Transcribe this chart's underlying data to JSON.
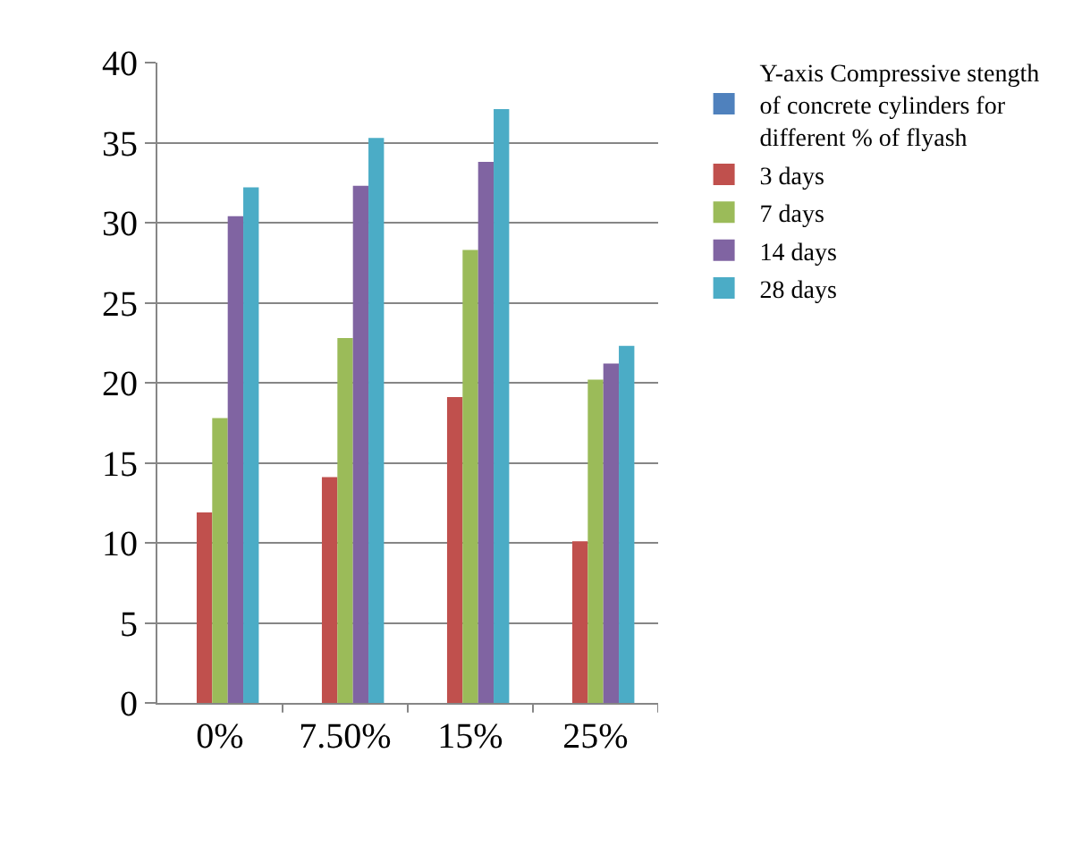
{
  "chart_data": {
    "type": "bar",
    "categories": [
      "0%",
      "7.50%",
      "15%",
      "25%"
    ],
    "series": [
      {
        "name": "Y-axis Compressive stength of concrete cylinders for different % of flyash",
        "color": "#4f81bd",
        "values": [
          null,
          null,
          null,
          null
        ]
      },
      {
        "name": "3 days",
        "color": "#c0504d",
        "values": [
          11.9,
          14.1,
          19.1,
          10.1
        ]
      },
      {
        "name": "7 days",
        "color": "#9bbb59",
        "values": [
          17.8,
          22.8,
          28.3,
          20.2
        ]
      },
      {
        "name": "14 days",
        "color": "#8064a2",
        "values": [
          30.4,
          32.3,
          33.8,
          21.2
        ]
      },
      {
        "name": "28 days",
        "color": "#4bacc6",
        "values": [
          32.2,
          35.3,
          37.1,
          22.3
        ]
      }
    ],
    "ylim": [
      0,
      40
    ],
    "yticks": [
      0,
      5,
      10,
      15,
      20,
      25,
      30,
      35,
      40
    ],
    "grid": "y",
    "legend": "right"
  }
}
